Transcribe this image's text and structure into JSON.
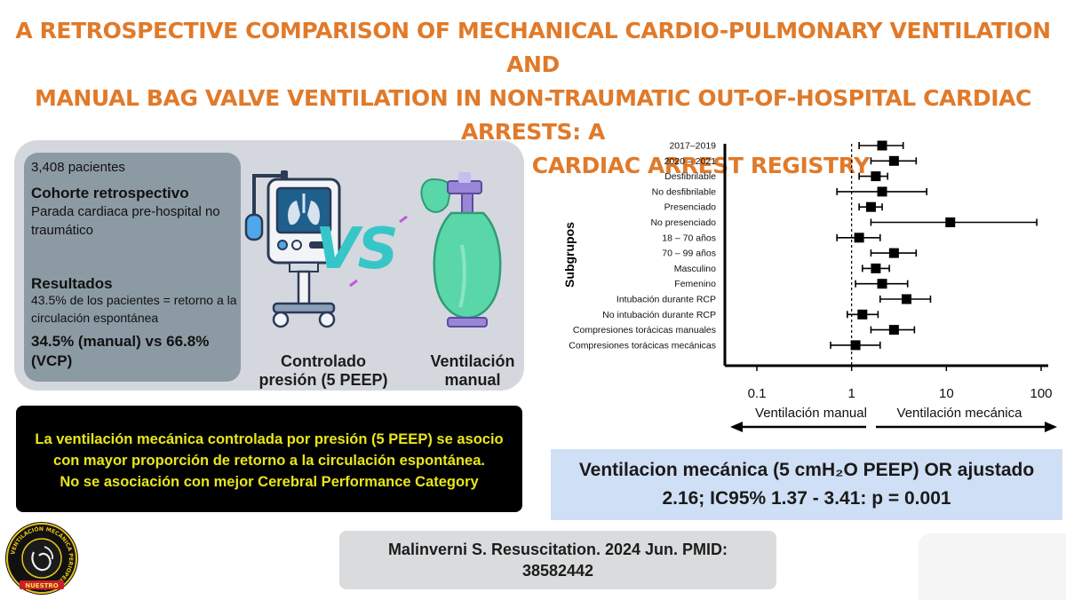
{
  "title": {
    "line1": "A RETROSPECTIVE COMPARISON OF MECHANICAL CARDIO-PULMONARY VENTILATION AND",
    "line2": "MANUAL BAG VALVE VENTILATION IN NON-TRAUMATIC OUT-OF-HOSPITAL CARDIAC ARRESTS: A",
    "line3": "STUDY FROM THE BELGIAN CARDIAC ARREST REGISTRY"
  },
  "summary": {
    "patients": "3,408 pacientes",
    "cohort_heading": "Cohorte retrospectivo",
    "cohort_text": "Parada cardiaca pre-hospital no traumático",
    "results_heading": "Resultados",
    "results_text": "43.5% de los pacientes = retorno a la circulación espontánea",
    "results_values": "34.5% (manual) vs 66.8% (VCP)"
  },
  "comparison": {
    "left_caption": "Controlado presión (5 PEEP)",
    "vs_label": "VS",
    "right_caption": "Ventilación manual"
  },
  "conclusion": {
    "line1": "La ventilación mecánica controlada por presión (5 PEEP) se asocio",
    "line2": "con mayor proporción de retorno a la circulación espontánea.",
    "line3": "No  se asociación con mejor Cerebral Performance Category"
  },
  "result": {
    "line1": "Ventilacion mecánica (5 cmH₂O PEEP) OR ajustado",
    "line2": "2.16; IC95% 1.37 - 3.41: p = 0.001"
  },
  "citation": {
    "line1": "Malinverni S. Resuscitation. 2024 Jun. PMID:",
    "line2": "38582442"
  },
  "logo": {
    "ring_text": "VENTILACIÓN MECÁNICA PERIOPERATORIA",
    "banner_text": "NUESTRO"
  },
  "colors": {
    "title": "#e07a2a",
    "vs": "#37c6c8",
    "conclusion_text": "#e8e61a",
    "result_bg": "#cfdff5",
    "panel_bg": "#d4d8de",
    "summary_bg": "#8c9aa4"
  },
  "chart_data": {
    "type": "forest",
    "scale": "log",
    "xlim": [
      0.1,
      100
    ],
    "xticks": [
      0.1,
      1,
      10,
      100
    ],
    "xtick_labels": [
      "0.1",
      "1",
      "10",
      "100"
    ],
    "reference_line": 1,
    "ylabel": "Subgrupos",
    "left_direction_label": "Ventilación manual",
    "right_direction_label": "Ventilación mecánica",
    "rows": [
      {
        "label": "2017–2019",
        "or": 2.1,
        "lo": 1.2,
        "hi": 3.5
      },
      {
        "label": "2020 – 2021",
        "or": 2.8,
        "lo": 1.6,
        "hi": 4.8
      },
      {
        "label": "Desfibrilable",
        "or": 1.8,
        "lo": 1.2,
        "hi": 2.4
      },
      {
        "label": "No desfibrilable",
        "or": 2.1,
        "lo": 0.7,
        "hi": 6.2
      },
      {
        "label": "Presenciado",
        "or": 1.6,
        "lo": 1.2,
        "hi": 2.1
      },
      {
        "label": "No presenciado",
        "or": 11,
        "lo": 1.6,
        "hi": 90
      },
      {
        "label": "18 – 70 años",
        "or": 1.2,
        "lo": 0.7,
        "hi": 2.0
      },
      {
        "label": "70 – 99 años",
        "or": 2.8,
        "lo": 1.6,
        "hi": 4.8
      },
      {
        "label": "Masculino",
        "or": 1.8,
        "lo": 1.3,
        "hi": 2.5
      },
      {
        "label": "Femenino",
        "or": 2.1,
        "lo": 1.1,
        "hi": 3.9
      },
      {
        "label": "Intubación durante RCP",
        "or": 3.8,
        "lo": 2.0,
        "hi": 6.8
      },
      {
        "label": "No intubación durante RCP",
        "or": 1.3,
        "lo": 0.9,
        "hi": 1.9
      },
      {
        "label": "Compresiones torácicas manuales",
        "or": 2.8,
        "lo": 1.6,
        "hi": 4.6
      },
      {
        "label": "Compresiones torácicas mecánicas",
        "or": 1.1,
        "lo": 0.6,
        "hi": 2.0
      }
    ]
  }
}
